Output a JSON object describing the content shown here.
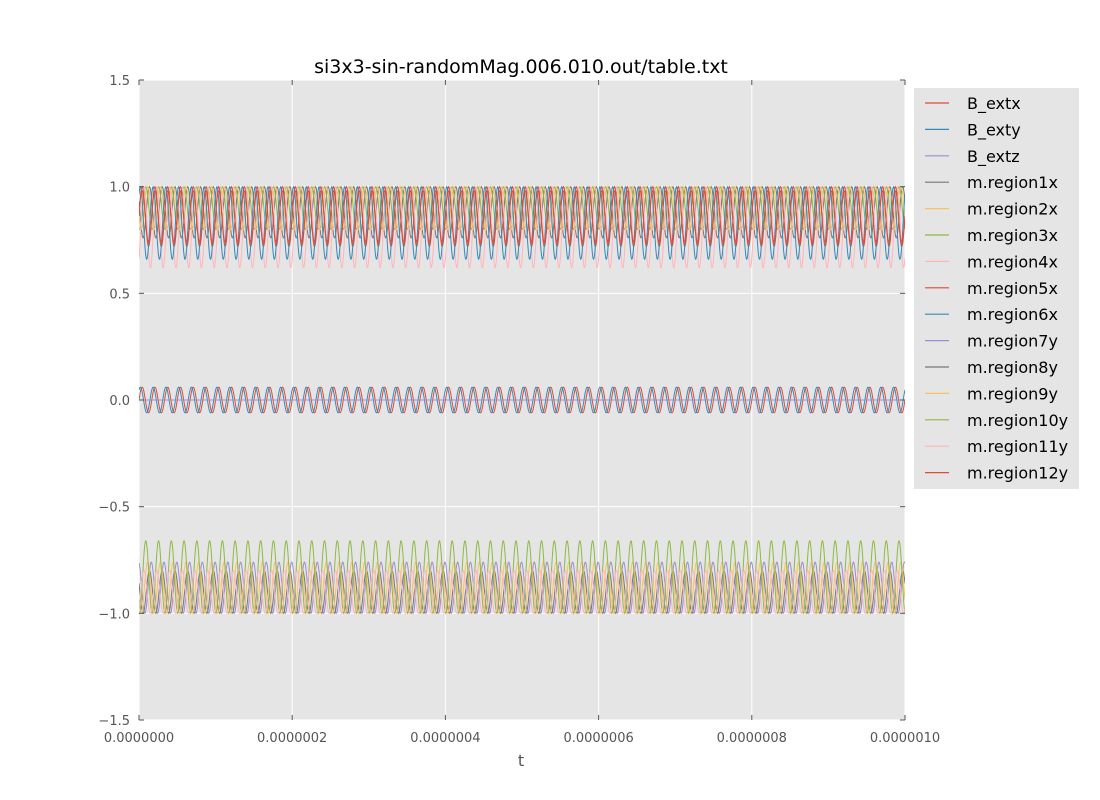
{
  "chart_data": {
    "type": "line",
    "title": "si3x3-sin-randomMag.006.010.out/table.txt",
    "xlabel": "t",
    "ylabel": "",
    "xlim": [
      0,
      1e-06
    ],
    "ylim": [
      -1.5,
      1.5
    ],
    "x_ticks": [
      "0.0000000",
      "0.0000002",
      "0.0000004",
      "0.0000006",
      "0.0000008",
      "0.0000010"
    ],
    "y_ticks": [
      "−1.5",
      "−1.0",
      "−0.5",
      "0.0",
      "0.5",
      "1.0",
      "1.5"
    ],
    "grid": true,
    "legend_position": "outside-right",
    "oscillation_cycles": 60,
    "series": [
      {
        "name": "B_extx",
        "color": "#E24A33",
        "center": 0.0,
        "amplitude": 0.06
      },
      {
        "name": "B_exty",
        "color": "#348ABD",
        "center": 0.0,
        "amplitude": 0.06
      },
      {
        "name": "B_extz",
        "color": "#988ED5",
        "center": 0.0,
        "amplitude": 0.0
      },
      {
        "name": "m.region1x",
        "color": "#777777",
        "center": 0.88,
        "amplitude": 0.12
      },
      {
        "name": "m.region2x",
        "color": "#FBC15E",
        "center": 0.9,
        "amplitude": 0.1
      },
      {
        "name": "m.region3x",
        "color": "#8EBA42",
        "center": 0.9,
        "amplitude": 0.1
      },
      {
        "name": "m.region4x",
        "color": "#FFB5B8",
        "center": 0.81,
        "amplitude": 0.19
      },
      {
        "name": "m.region5x",
        "color": "#E24A33",
        "center": 0.86,
        "amplitude": 0.14
      },
      {
        "name": "m.region6x",
        "color": "#348ABD",
        "center": 0.83,
        "amplitude": 0.17
      },
      {
        "name": "m.region7y",
        "color": "#988ED5",
        "center": -0.88,
        "amplitude": 0.12
      },
      {
        "name": "m.region8y",
        "color": "#777777",
        "center": -0.9,
        "amplitude": 0.1
      },
      {
        "name": "m.region9y",
        "color": "#FBC15E",
        "center": -0.88,
        "amplitude": 0.12
      },
      {
        "name": "m.region10y",
        "color": "#8EBA42",
        "center": -0.83,
        "amplitude": 0.17
      },
      {
        "name": "m.region11y",
        "color": "#FFB5B8",
        "center": -0.9,
        "amplitude": 0.1
      },
      {
        "name": "m.region12y",
        "color": "#E24A33",
        "center": 0.86,
        "amplitude": 0.12
      }
    ]
  }
}
